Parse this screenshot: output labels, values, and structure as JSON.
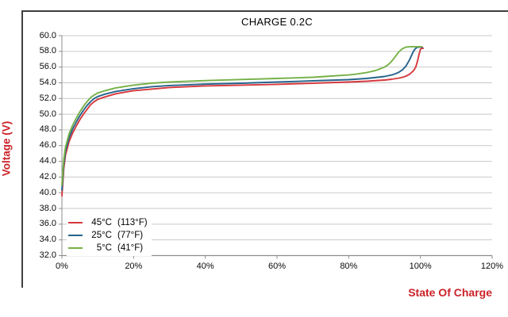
{
  "title": "CHARGE 0.2C",
  "y_axis": {
    "title": "Voltage (V)",
    "ticks": [
      "60.0",
      "58.0",
      "56.0",
      "54.0",
      "52.0",
      "50.0",
      "48.0",
      "46.0",
      "44.0",
      "42.0",
      "40.0",
      "38.0",
      "36.0",
      "34.0",
      "32.0"
    ]
  },
  "x_axis": {
    "title": "State Of Charge",
    "ticks": [
      "0%",
      "20%",
      "40%",
      "60%",
      "80%",
      "100%",
      "120%"
    ]
  },
  "legend": {
    "items": [
      {
        "temp_c": "45°C",
        "temp_f": "(113°F)"
      },
      {
        "temp_c": "25°C",
        "temp_f": "(77°F)"
      },
      {
        "temp_c": "5°C",
        "temp_f": "(41°F)"
      }
    ]
  },
  "colors": {
    "series_45c": "#d6383d",
    "series_25c": "#26648c",
    "series_5c": "#76b147",
    "axis_title_text": "#cc2229",
    "gridline": "#c9c9c9",
    "axis_line": "#8c8c8c",
    "frame_border": "#3f3f3f",
    "tick_text": "#000000"
  },
  "chart_data": {
    "type": "line",
    "title": "CHARGE 0.2C",
    "xlabel": "State Of Charge",
    "ylabel": "Voltage (V)",
    "x_unit": "%",
    "xlim": [
      0,
      120
    ],
    "ylim": [
      32,
      60
    ],
    "y_tick_step": 2.0,
    "x_tick_step": 20,
    "grid": "horizontal",
    "legend_position": "bottom-left",
    "series": [
      {
        "name": "45°C (113°F)",
        "color": "#d6383d",
        "points": [
          [
            0,
            39.6
          ],
          [
            0.5,
            43
          ],
          [
            1,
            44.8
          ],
          [
            2,
            46.5
          ],
          [
            3,
            47.6
          ],
          [
            4,
            48.5
          ],
          [
            5,
            49.3
          ],
          [
            6,
            50
          ],
          [
            7,
            50.6
          ],
          [
            8,
            51.2
          ],
          [
            9,
            51.6
          ],
          [
            10,
            51.9
          ],
          [
            12,
            52.2
          ],
          [
            15,
            52.6
          ],
          [
            20,
            53
          ],
          [
            25,
            53.2
          ],
          [
            30,
            53.4
          ],
          [
            40,
            53.6
          ],
          [
            50,
            53.7
          ],
          [
            60,
            53.8
          ],
          [
            70,
            53.95
          ],
          [
            80,
            54.1
          ],
          [
            85,
            54.2
          ],
          [
            90,
            54.35
          ],
          [
            92,
            54.45
          ],
          [
            94,
            54.6
          ],
          [
            95,
            54.7
          ],
          [
            96,
            54.85
          ],
          [
            97,
            55.1
          ],
          [
            98,
            55.5
          ],
          [
            98.7,
            56
          ],
          [
            99.2,
            56.8
          ],
          [
            99.6,
            57.6
          ],
          [
            100,
            58.25
          ],
          [
            100.3,
            58.4
          ],
          [
            100.8,
            58.4
          ]
        ]
      },
      {
        "name": "25°C (77°F)",
        "color": "#26648c",
        "points": [
          [
            0,
            40.3
          ],
          [
            0.5,
            43.6
          ],
          [
            1,
            45.3
          ],
          [
            2,
            47
          ],
          [
            3,
            48.1
          ],
          [
            4,
            49
          ],
          [
            5,
            49.8
          ],
          [
            6,
            50.5
          ],
          [
            7,
            51.1
          ],
          [
            8,
            51.6
          ],
          [
            9,
            52
          ],
          [
            10,
            52.25
          ],
          [
            12,
            52.55
          ],
          [
            15,
            52.9
          ],
          [
            20,
            53.25
          ],
          [
            25,
            53.5
          ],
          [
            30,
            53.65
          ],
          [
            40,
            53.82
          ],
          [
            50,
            53.95
          ],
          [
            60,
            54.1
          ],
          [
            70,
            54.25
          ],
          [
            80,
            54.4
          ],
          [
            85,
            54.55
          ],
          [
            88,
            54.7
          ],
          [
            90,
            54.8
          ],
          [
            92,
            55
          ],
          [
            93,
            55.15
          ],
          [
            94,
            55.35
          ],
          [
            95,
            55.65
          ],
          [
            96,
            56.15
          ],
          [
            97,
            56.95
          ],
          [
            98,
            57.95
          ],
          [
            98.5,
            58.3
          ],
          [
            99,
            58.5
          ],
          [
            99.5,
            58.55
          ],
          [
            100.5,
            58.55
          ]
        ]
      },
      {
        "name": "5°C (41°F)",
        "color": "#76b147",
        "points": [
          [
            0,
            41
          ],
          [
            0.5,
            44.2
          ],
          [
            1,
            45.8
          ],
          [
            2,
            47.5
          ],
          [
            3,
            48.6
          ],
          [
            4,
            49.5
          ],
          [
            5,
            50.3
          ],
          [
            6,
            51
          ],
          [
            7,
            51.6
          ],
          [
            8,
            52.1
          ],
          [
            9,
            52.45
          ],
          [
            10,
            52.7
          ],
          [
            12,
            53
          ],
          [
            15,
            53.35
          ],
          [
            20,
            53.7
          ],
          [
            25,
            53.95
          ],
          [
            30,
            54.1
          ],
          [
            40,
            54.28
          ],
          [
            50,
            54.42
          ],
          [
            60,
            54.55
          ],
          [
            70,
            54.7
          ],
          [
            75,
            54.85
          ],
          [
            80,
            55
          ],
          [
            82,
            55.1
          ],
          [
            85,
            55.3
          ],
          [
            87,
            55.5
          ],
          [
            88,
            55.65
          ],
          [
            90,
            56
          ],
          [
            91,
            56.3
          ],
          [
            92,
            56.75
          ],
          [
            93,
            57.35
          ],
          [
            94,
            57.95
          ],
          [
            95,
            58.35
          ],
          [
            96,
            58.55
          ],
          [
            97,
            58.6
          ],
          [
            100.3,
            58.6
          ]
        ]
      }
    ]
  }
}
